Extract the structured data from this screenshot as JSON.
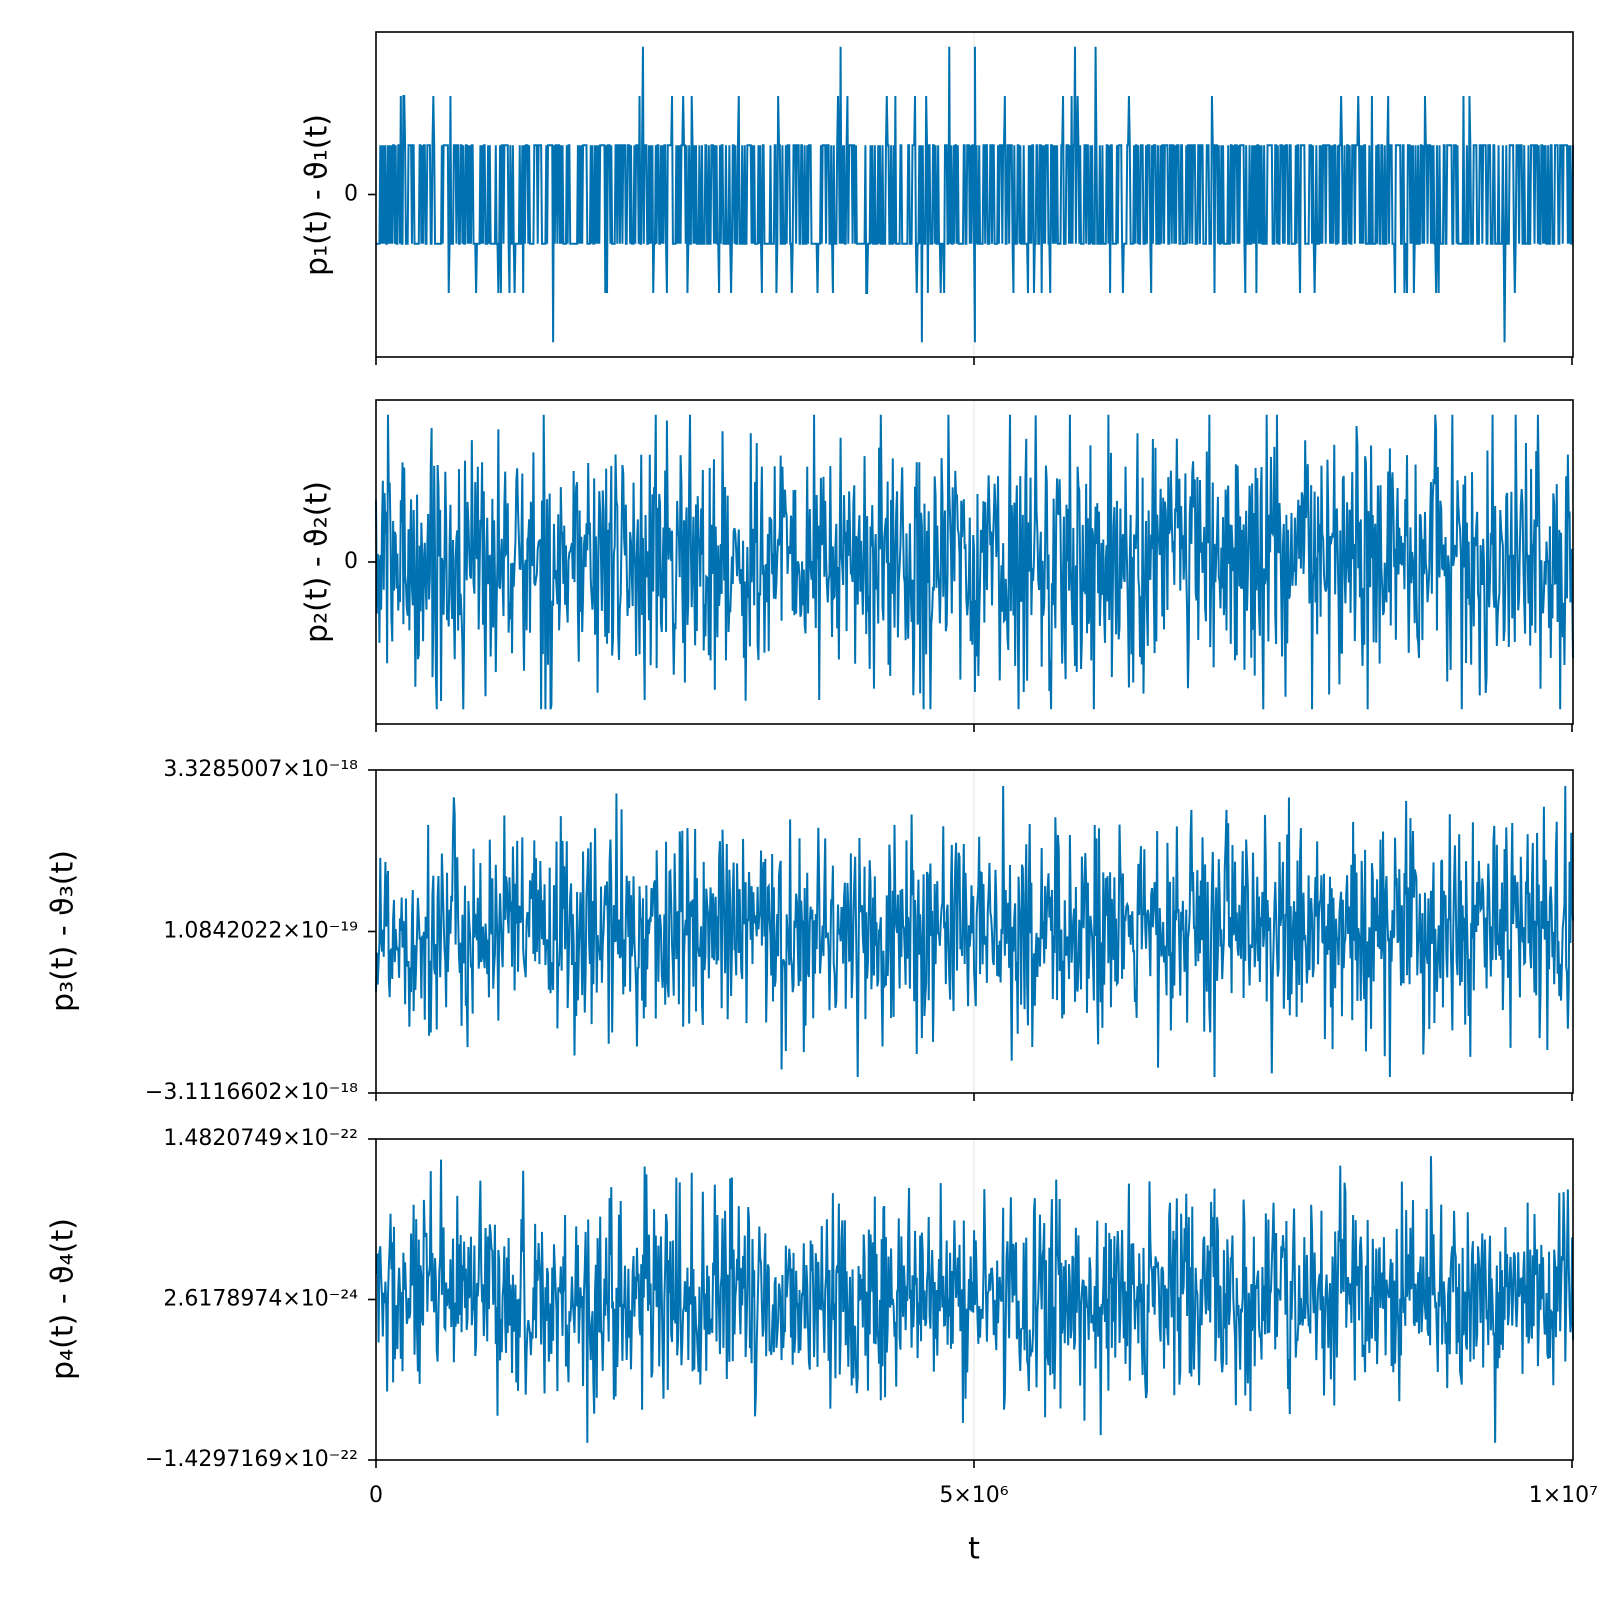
{
  "chart_data": [
    {
      "type": "line",
      "ylabel": "p₁(t) - ϑ₁(t)",
      "yticks": [
        {
          "value": 0,
          "label": "0"
        }
      ],
      "ylim": [
        -3.3,
        3.3
      ],
      "xlim": [
        0,
        10000000
      ],
      "xticks": [
        0,
        5000000,
        10000000
      ],
      "grid": true,
      "series_color": "#0072B2",
      "series": [
        {
          "description": "dense noise, values mostly in [-1, 1]; frequent spikes to ±2; rare spikes to ±3",
          "core_range": [
            -1,
            1
          ],
          "frequent_spike_levels": [
            -2,
            2
          ],
          "rare_spikes": [
            {
              "x": 1480000,
              "y": -3
            },
            {
              "x": 2230000,
              "y": 3
            },
            {
              "x": 3880000,
              "y": 3
            },
            {
              "x": 4560000,
              "y": -3
            },
            {
              "x": 4790000,
              "y": 3
            },
            {
              "x": 5000000,
              "y": -3
            },
            {
              "x": 5000000,
              "y": 3
            },
            {
              "x": 5840000,
              "y": 3
            },
            {
              "x": 6010000,
              "y": 3
            },
            {
              "x": 9430000,
              "y": -3
            }
          ]
        }
      ]
    },
    {
      "type": "line",
      "ylabel": "p₂(t) - ϑ₂(t)",
      "yticks": [
        {
          "value": 0,
          "label": "0"
        }
      ],
      "ylim": [
        -3.3,
        3.3
      ],
      "xlim": [
        0,
        10000000
      ],
      "xticks": [
        0,
        5000000,
        10000000
      ],
      "grid": true,
      "series_color": "#0072B2",
      "series": [
        {
          "description": "dense noise, envelope about ±2.8, extremes about ±3",
          "envelope": [
            -2.8,
            2.8
          ],
          "extremes": [
            -3.0,
            3.0
          ]
        }
      ]
    },
    {
      "type": "line",
      "ylabel": "p₃(t) - ϑ₃(t)",
      "yticks": [
        {
          "value": -3.1116602e-18,
          "label": "−3.1116602×10⁻¹⁸"
        },
        {
          "value": 1.0842022e-19,
          "label": "1.0842022×10⁻¹⁹"
        },
        {
          "value": 3.3285007e-18,
          "label": "3.3285007×10⁻¹⁸"
        }
      ],
      "ylim": [
        -3.1116602e-18,
        3.3285007e-18
      ],
      "xlim": [
        0,
        10000000
      ],
      "xticks": [
        0,
        5000000,
        10000000
      ],
      "grid": true,
      "series_color": "#0072B2",
      "series": [
        {
          "description": "dense noise centred near 1.1e-19, envelope about ±2.2e-18, extremes about -2.9e-18 and 2.9e-18",
          "center": 1.0842022e-19,
          "envelope": [
            -2.3e-18,
            2.3e-18
          ],
          "extremes": [
            -2.9e-18,
            2.9e-18
          ]
        }
      ]
    },
    {
      "type": "line",
      "ylabel": "p₄(t) - ϑ₄(t)",
      "yticks": [
        {
          "value": -1.4297169e-22,
          "label": "−1.4297169×10⁻²²"
        },
        {
          "value": 2.6178974e-24,
          "label": "2.6178974×10⁻²⁴"
        },
        {
          "value": 1.4820749e-22,
          "label": "1.4820749×10⁻²²"
        }
      ],
      "ylim": [
        -1.4297169e-22,
        1.4820749e-22
      ],
      "xlim": [
        0,
        10000000
      ],
      "xticks": [
        0,
        5000000,
        10000000
      ],
      "xticklabels": [
        "0",
        "5×10⁶",
        "1×10⁷"
      ],
      "xlabel": "t",
      "grid": true,
      "series_color": "#0072B2",
      "series": [
        {
          "description": "dense noise centred near 2.6e-24, envelope about ±1.0e-22, extremes about ±1.3e-22",
          "center": 2.6178974e-24,
          "envelope": [
            -1e-22,
            1e-22
          ],
          "extremes": [
            -1.3e-22,
            1.3e-22
          ]
        }
      ]
    }
  ]
}
